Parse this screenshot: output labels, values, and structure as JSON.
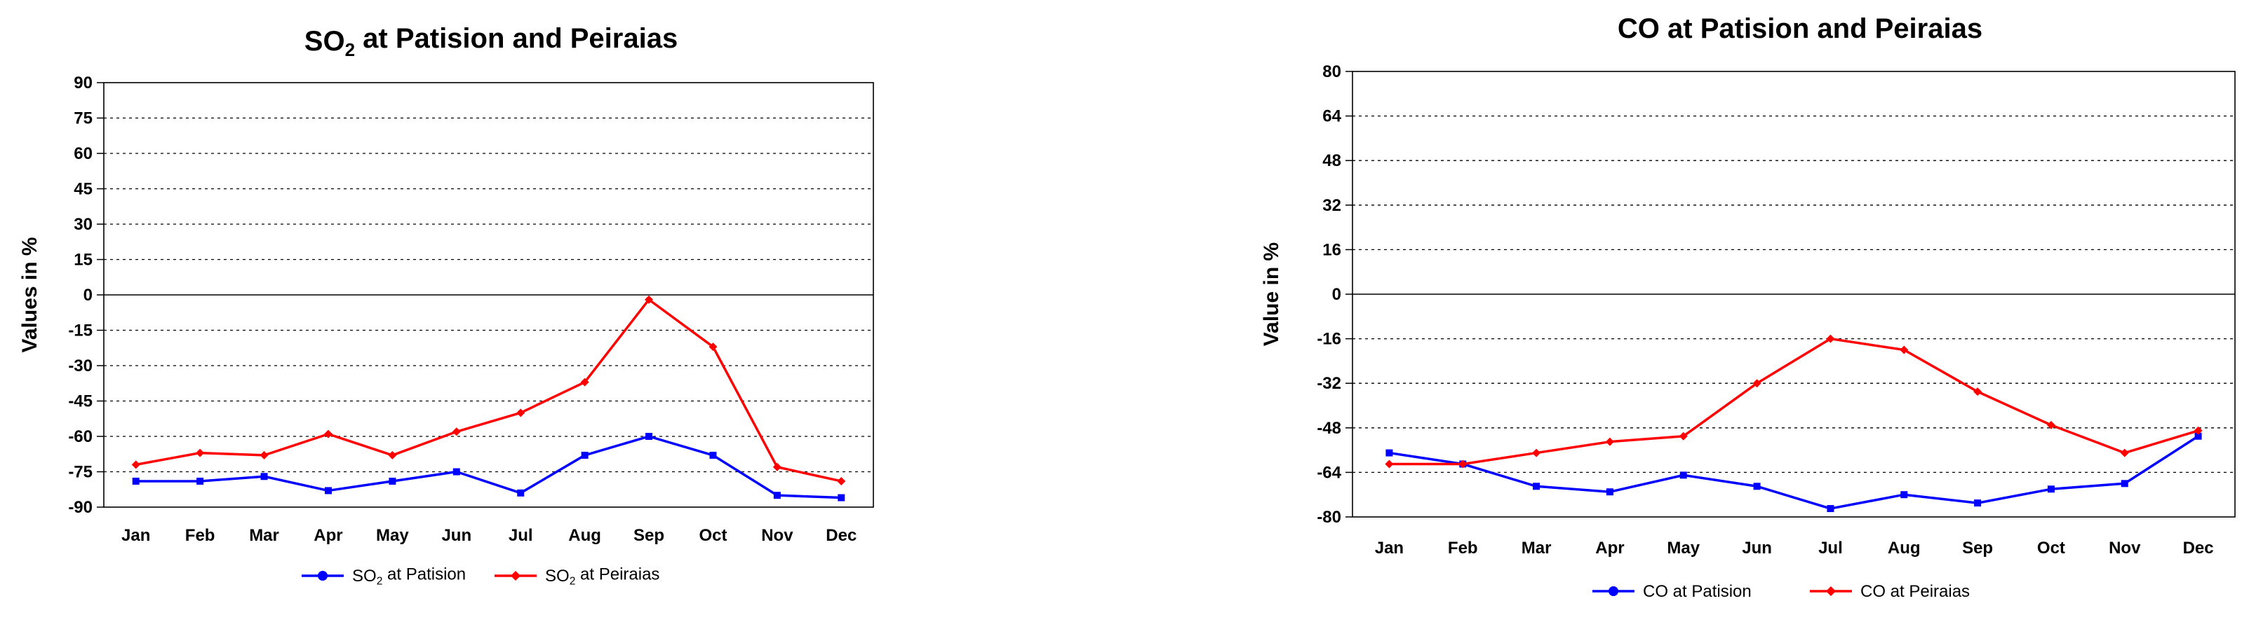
{
  "chart_data": [
    {
      "type": "line",
      "title": "SO₂ at Patision and Peiraias",
      "title_parts": [
        "SO",
        "2",
        " at Patision and Peiraias"
      ],
      "ylabel": "Values in %",
      "xlabel": "",
      "categories": [
        "Jan",
        "Feb",
        "Mar",
        "Apr",
        "May",
        "Jun",
        "Jul",
        "Aug",
        "Sep",
        "Oct",
        "Nov",
        "Dec"
      ],
      "ylim": [
        -90,
        90
      ],
      "yticks": [
        90,
        75,
        60,
        45,
        30,
        15,
        0,
        -15,
        -30,
        -45,
        -60,
        -75,
        -90
      ],
      "grid": "dotted-horizontal",
      "legend": "bottom",
      "series": [
        {
          "name": "SO₂ at Patision",
          "name_parts": [
            "SO",
            "2",
            " at Patision"
          ],
          "color": "#0000ff",
          "marker": "square",
          "values": [
            -79,
            -79,
            -77,
            -83,
            -79,
            -75,
            -84,
            -68,
            -60,
            -68,
            -85,
            -86
          ]
        },
        {
          "name": "SO₂ at Peiraias",
          "name_parts": [
            "SO",
            "2",
            "  at Peiraias"
          ],
          "color": "#ff0000",
          "marker": "diamond",
          "values": [
            -72,
            -67,
            -68,
            -59,
            -68,
            -58,
            -50,
            -37,
            -2,
            -22,
            -73,
            -79
          ]
        }
      ]
    },
    {
      "type": "line",
      "title": "CO at Patision and Peiraias",
      "ylabel": "Value in %",
      "xlabel": "",
      "categories": [
        "Jan",
        "Feb",
        "Mar",
        "Apr",
        "May",
        "Jun",
        "Jul",
        "Aug",
        "Sep",
        "Oct",
        "Nov",
        "Dec"
      ],
      "ylim": [
        -80,
        80
      ],
      "yticks": [
        80,
        64,
        48,
        32,
        16,
        0,
        -16,
        -32,
        -48,
        -64,
        -80
      ],
      "grid": "dotted-horizontal",
      "legend": "bottom",
      "series": [
        {
          "name": "CO at Patision",
          "color": "#0000ff",
          "marker": "square",
          "values": [
            -57,
            -61,
            -69,
            -71,
            -65,
            -69,
            -77,
            -72,
            -75,
            -70,
            -68,
            -51
          ]
        },
        {
          "name": "CO at Peiraias",
          "color": "#ff0000",
          "marker": "diamond",
          "values": [
            -61,
            -61,
            -57,
            -53,
            -51,
            -32,
            -16,
            -20,
            -35,
            -47,
            -57,
            -49
          ]
        }
      ]
    }
  ]
}
